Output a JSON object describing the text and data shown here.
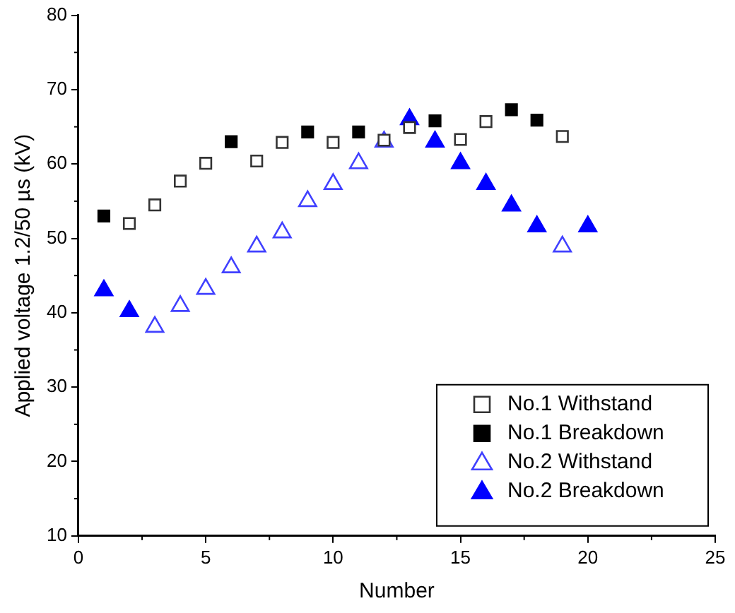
{
  "chart_data": {
    "type": "scatter",
    "xlabel": "Number",
    "ylabel": "Applied voltage 1.2/50 µs (kV)",
    "xlim": [
      0,
      25
    ],
    "xticks": [
      0,
      5,
      10,
      15,
      20,
      25
    ],
    "ylim": [
      10,
      80
    ],
    "yticks": [
      10,
      20,
      30,
      40,
      50,
      60,
      70,
      80
    ],
    "grid": false,
    "legend": "bottom right",
    "series": [
      {
        "name": "No.1 Withstand",
        "color": "#333333",
        "marker": "square-open",
        "x": [
          2,
          3,
          4,
          5,
          7,
          8,
          10,
          12,
          13,
          15,
          16,
          19
        ],
        "values": [
          52.0,
          54.5,
          57.7,
          60.1,
          60.4,
          62.9,
          62.9,
          63.2,
          64.9,
          63.3,
          65.7,
          63.7
        ]
      },
      {
        "name": "No.1 Breakdown",
        "color": "#000000",
        "marker": "square",
        "x": [
          1,
          6,
          9,
          11,
          14,
          17,
          18
        ],
        "values": [
          53.0,
          63.0,
          64.3,
          64.3,
          65.8,
          67.3,
          65.9
        ]
      },
      {
        "name": "No.2 Withstand",
        "color": "#4040ff",
        "marker": "triangle-open",
        "x": [
          3,
          4,
          5,
          6,
          7,
          8,
          9,
          10,
          11,
          12,
          19
        ],
        "values": [
          38.1,
          40.9,
          43.2,
          46.1,
          48.9,
          50.8,
          55.0,
          57.3,
          60.1,
          63.0,
          48.9
        ]
      },
      {
        "name": "No.2 Breakdown",
        "color": "#0000ff",
        "marker": "triangle",
        "x": [
          1,
          2,
          13,
          14,
          15,
          16,
          17,
          18,
          20
        ],
        "values": [
          43.0,
          40.2,
          66.0,
          63.0,
          60.1,
          57.3,
          54.4,
          51.6,
          51.6
        ]
      }
    ]
  }
}
